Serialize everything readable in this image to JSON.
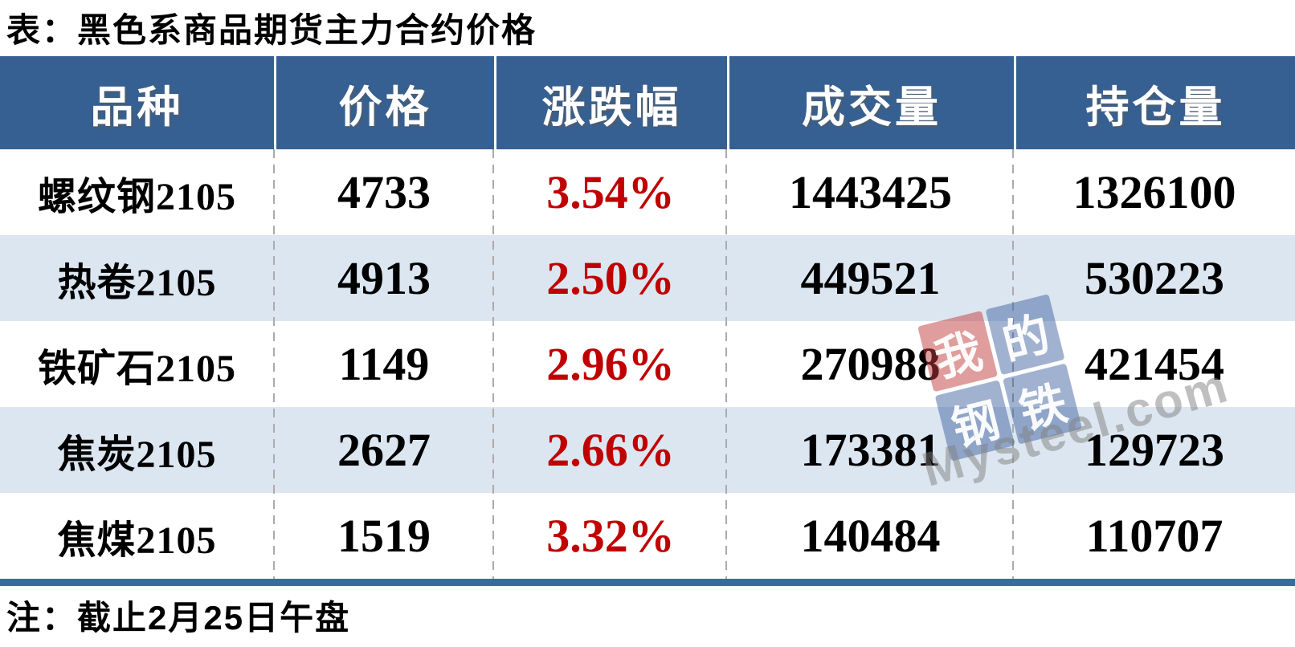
{
  "title": "表：黑色系商品期货主力合约价格",
  "note": "注：截止2月25日午盘",
  "table": {
    "headers": [
      "品种",
      "价格",
      "涨跌幅",
      "成交量",
      "持仓量"
    ],
    "rows": [
      {
        "variety": "螺纹钢2105",
        "price": "4733",
        "change": "3.54%",
        "volume": "1443425",
        "open_interest": "1326100"
      },
      {
        "variety": "热卷2105",
        "price": "4913",
        "change": "2.50%",
        "volume": "449521",
        "open_interest": "530223"
      },
      {
        "variety": "铁矿石2105",
        "price": "1149",
        "change": "2.96%",
        "volume": "270988",
        "open_interest": "421454"
      },
      {
        "variety": "焦炭2105",
        "price": "2627",
        "change": "2.66%",
        "volume": "173381",
        "open_interest": "129723"
      },
      {
        "variety": "焦煤2105",
        "price": "1519",
        "change": "3.32%",
        "volume": "140484",
        "open_interest": "110707"
      }
    ]
  },
  "watermark": {
    "tiles": [
      "我",
      "的",
      "钢",
      "铁"
    ],
    "brand": "Mysteel.com"
  },
  "colors": {
    "header_bg": "#366092",
    "alt_row_bg": "#dce6f1",
    "bottom_bar": "#376BA5",
    "change_red": "#C00000"
  },
  "chart_data": {
    "type": "table",
    "title": "表：黑色系商品期货主力合约价格",
    "columns": [
      "品种",
      "价格",
      "涨跌幅",
      "成交量",
      "持仓量"
    ],
    "rows": [
      [
        "螺纹钢2105",
        4733,
        "3.54%",
        1443425,
        1326100
      ],
      [
        "热卷2105",
        4913,
        "2.50%",
        449521,
        530223
      ],
      [
        "铁矿石2105",
        1149,
        "2.96%",
        270988,
        421454
      ],
      [
        "焦炭2105",
        2627,
        "2.66%",
        173381,
        129723
      ],
      [
        "焦煤2105",
        1519,
        "3.32%",
        140484,
        110707
      ]
    ],
    "note": "注：截止2月25日午盘",
    "layout": "header row dark blue, body rows alternate white / light blue, change column red"
  }
}
